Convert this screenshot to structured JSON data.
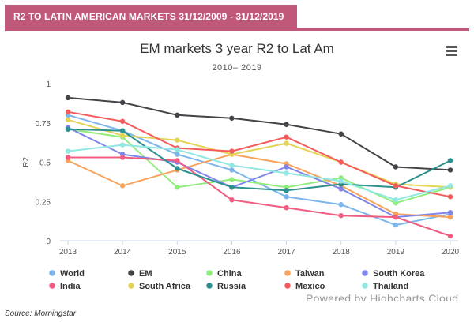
{
  "banner": {
    "title": "R2 TO LATIN AMERICAN MARKETS 31/12/2009 - 31/12/2019"
  },
  "menu_icon": "hamburger-menu-icon",
  "credits": "Powered by Highcharts Cloud",
  "source": "Source: Morningstar",
  "colors": {
    "banner": "#c0587a"
  },
  "chart_data": {
    "type": "line",
    "title": "EM markets 3 year R2 to Lat Am",
    "subtitle": "2010– 2019",
    "xlabel": "",
    "ylabel": "R2",
    "x": [
      2013,
      2014,
      2015,
      2016,
      2017,
      2018,
      2019,
      2020
    ],
    "x_labels": [
      "2013",
      "2014",
      "2015",
      "2016",
      "2017",
      "2018",
      "2019",
      "2020"
    ],
    "ylim": [
      0,
      1
    ],
    "y_ticks": [
      0,
      0.25,
      0.5,
      0.75,
      1
    ],
    "y_tick_labels": [
      "0",
      "0.25",
      "0.5",
      "0.75",
      "1"
    ],
    "grid": false,
    "legend_position": "bottom",
    "series": [
      {
        "name": "World",
        "color": "#7cb5ec",
        "values": [
          0.8,
          0.7,
          0.55,
          0.45,
          0.28,
          0.23,
          0.1,
          0.17
        ]
      },
      {
        "name": "EM",
        "color": "#434348",
        "values": [
          0.91,
          0.88,
          0.8,
          0.78,
          0.74,
          0.68,
          0.47,
          0.45
        ]
      },
      {
        "name": "China",
        "color": "#90ed7d",
        "values": [
          0.71,
          0.66,
          0.34,
          0.39,
          0.34,
          0.4,
          0.24,
          0.34
        ]
      },
      {
        "name": "Taiwan",
        "color": "#f7a35c",
        "values": [
          0.51,
          0.35,
          0.45,
          0.55,
          0.49,
          0.35,
          0.17,
          0.15
        ]
      },
      {
        "name": "South Korea",
        "color": "#8085e9",
        "values": [
          0.72,
          0.55,
          0.5,
          0.34,
          0.47,
          0.33,
          0.15,
          0.18
        ]
      },
      {
        "name": "India",
        "color": "#f15c80",
        "values": [
          0.53,
          0.53,
          0.51,
          0.26,
          0.21,
          0.16,
          0.15,
          0.03
        ]
      },
      {
        "name": "South Africa",
        "color": "#e4d354",
        "values": [
          0.77,
          0.67,
          0.64,
          0.55,
          0.62,
          0.5,
          0.36,
          0.34
        ]
      },
      {
        "name": "Russia",
        "color": "#2b908f",
        "values": [
          0.71,
          0.7,
          0.46,
          0.34,
          0.32,
          0.36,
          0.34,
          0.51
        ]
      },
      {
        "name": "Mexico",
        "color": "#f45b5b",
        "values": [
          0.82,
          0.76,
          0.59,
          0.57,
          0.66,
          0.5,
          0.35,
          0.28
        ]
      },
      {
        "name": "Thailand",
        "color": "#91e8e1",
        "values": [
          0.57,
          0.61,
          0.58,
          0.48,
          0.43,
          0.38,
          0.26,
          0.35
        ]
      }
    ]
  }
}
